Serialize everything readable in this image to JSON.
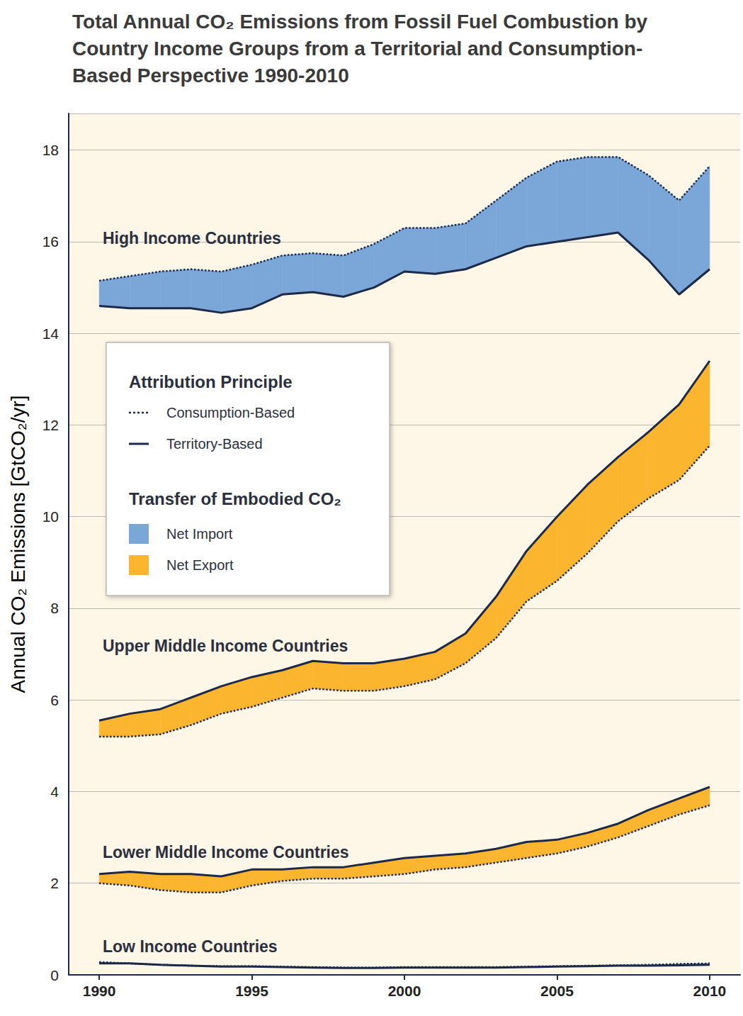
{
  "chart_data": {
    "type": "line",
    "title": "Total Annual CO₂ Emissions from Fossil Fuel Combustion by\nCountry Income Groups from a Territorial and Consumption-\nBased Perspective 1990-2010",
    "y_label": "Annual CO₂ Emissions [GtCO₂/yr]",
    "x": [
      1990,
      1991,
      1992,
      1993,
      1994,
      1995,
      1996,
      1997,
      1998,
      1999,
      2000,
      2001,
      2002,
      2003,
      2004,
      2005,
      2006,
      2007,
      2008,
      2009,
      2010
    ],
    "xlim": [
      1989,
      2011
    ],
    "xticks": [
      1990,
      1995,
      2000,
      2005,
      2010
    ],
    "ylim": [
      0,
      18.8
    ],
    "yticks": [
      0,
      2,
      4,
      6,
      8,
      10,
      12,
      14,
      16,
      18
    ],
    "grid": true,
    "legend": "upper left",
    "attribution": {
      "title": "Attribution Principle",
      "color": "#1c2a4a",
      "consumption": {
        "name": "Consumption-Based",
        "line_style": "dotted"
      },
      "territory": {
        "name": "Territory-Based",
        "line_style": "solid"
      }
    },
    "transfer": {
      "title": "Transfer of Embodied CO₂",
      "series": [
        {
          "name": "Net Import",
          "color": "#7aa7d8"
        },
        {
          "name": "Net Export",
          "color": "#fbb52f"
        }
      ]
    },
    "groups": [
      {
        "name": "High Income Countries",
        "territory": [
          14.6,
          14.55,
          14.55,
          14.55,
          14.45,
          14.55,
          14.85,
          14.9,
          14.8,
          15.0,
          15.35,
          15.3,
          15.4,
          15.65,
          15.9,
          16.0,
          16.1,
          16.2,
          15.6,
          14.85,
          15.4
        ],
        "consumption": [
          15.15,
          15.25,
          15.35,
          15.4,
          15.35,
          15.5,
          15.7,
          15.75,
          15.7,
          15.95,
          16.3,
          16.3,
          16.4,
          16.9,
          17.4,
          17.75,
          17.85,
          17.85,
          17.45,
          16.9,
          17.65
        ]
      },
      {
        "name": "Upper Middle Income Countries",
        "territory": [
          5.55,
          5.7,
          5.8,
          6.05,
          6.3,
          6.5,
          6.65,
          6.85,
          6.8,
          6.8,
          6.9,
          7.05,
          7.45,
          8.25,
          9.25,
          10.0,
          10.7,
          11.3,
          11.85,
          12.45,
          13.4
        ],
        "consumption": [
          5.2,
          5.2,
          5.25,
          5.45,
          5.7,
          5.85,
          6.05,
          6.25,
          6.2,
          6.2,
          6.3,
          6.45,
          6.8,
          7.35,
          8.15,
          8.6,
          9.2,
          9.9,
          10.4,
          10.8,
          11.55
        ]
      },
      {
        "name": "Lower Middle Income Countries",
        "territory": [
          2.2,
          2.25,
          2.2,
          2.2,
          2.15,
          2.3,
          2.3,
          2.35,
          2.35,
          2.45,
          2.55,
          2.6,
          2.65,
          2.75,
          2.9,
          2.95,
          3.1,
          3.3,
          3.6,
          3.85,
          4.1
        ],
        "consumption": [
          2.0,
          1.95,
          1.85,
          1.8,
          1.8,
          1.95,
          2.05,
          2.1,
          2.1,
          2.15,
          2.2,
          2.3,
          2.35,
          2.45,
          2.55,
          2.65,
          2.8,
          3.0,
          3.25,
          3.5,
          3.7
        ]
      },
      {
        "name": "Low Income Countries",
        "territory": [
          0.25,
          0.25,
          0.22,
          0.2,
          0.18,
          0.18,
          0.17,
          0.16,
          0.15,
          0.15,
          0.16,
          0.16,
          0.16,
          0.16,
          0.17,
          0.18,
          0.19,
          0.2,
          0.2,
          0.21,
          0.22
        ],
        "consumption": [
          0.28,
          0.25,
          0.22,
          0.2,
          0.19,
          0.19,
          0.18,
          0.17,
          0.16,
          0.16,
          0.17,
          0.17,
          0.17,
          0.17,
          0.18,
          0.19,
          0.2,
          0.21,
          0.22,
          0.24,
          0.25
        ]
      }
    ]
  }
}
